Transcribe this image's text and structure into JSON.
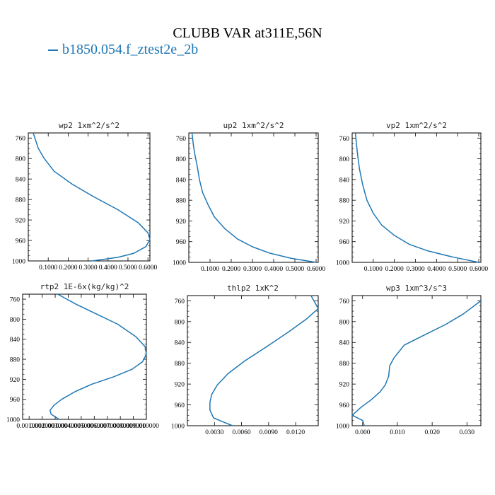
{
  "title": "CLUBB VAR at311E,56N",
  "legend": {
    "label": "b1850.054.f_ztest2e_2b",
    "color": "#1f77b4"
  },
  "chart_data": [
    {
      "type": "line",
      "title": "wp2  1xm^2/s^2",
      "xlim": [
        0,
        0.61
      ],
      "ylim": [
        1000,
        750
      ],
      "xticks": [
        0.1,
        0.2,
        0.3,
        0.4,
        0.5,
        0.6
      ],
      "xtick_labels": [
        "0.1000",
        "0.2000",
        "0.3000",
        "0.4000",
        "0.5000",
        "0.6000"
      ],
      "yticks": [
        760,
        800,
        840,
        880,
        920,
        960,
        1000
      ],
      "series": [
        {
          "color": "#1f77b4",
          "x": [
            0.32,
            0.45,
            0.53,
            0.59,
            0.61,
            0.6,
            0.55,
            0.45,
            0.33,
            0.22,
            0.13,
            0.08,
            0.05,
            0.025
          ],
          "y": [
            1000,
            993,
            985,
            972,
            958,
            945,
            925,
            900,
            875,
            850,
            825,
            800,
            780,
            750
          ]
        }
      ]
    },
    {
      "type": "line",
      "title": "up2  1xm^2/s^2",
      "xlim": [
        0,
        0.61
      ],
      "ylim": [
        1000,
        750
      ],
      "xticks": [
        0.1,
        0.2,
        0.3,
        0.4,
        0.5,
        0.6
      ],
      "xtick_labels": [
        "0.1000",
        "0.2000",
        "0.3000",
        "0.4000",
        "0.5000",
        "0.6000"
      ],
      "yticks": [
        760,
        800,
        840,
        880,
        920,
        960,
        1000
      ],
      "series": [
        {
          "color": "#1f77b4",
          "x": [
            0.6,
            0.48,
            0.38,
            0.3,
            0.23,
            0.17,
            0.12,
            0.09,
            0.065,
            0.05,
            0.04,
            0.03,
            0.022,
            0.015
          ],
          "y": [
            1000,
            992,
            982,
            970,
            955,
            935,
            912,
            888,
            865,
            840,
            815,
            795,
            775,
            750
          ]
        }
      ]
    },
    {
      "type": "line",
      "title": "vp2  1xm^2/s^2",
      "xlim": [
        0,
        0.61
      ],
      "ylim": [
        1000,
        750
      ],
      "xticks": [
        0.1,
        0.2,
        0.3,
        0.4,
        0.5,
        0.6
      ],
      "xtick_labels": [
        "0.1000",
        "0.2000",
        "0.3000",
        "0.4000",
        "0.5000",
        "0.6000"
      ],
      "yticks": [
        760,
        800,
        840,
        880,
        920,
        960,
        1000
      ],
      "series": [
        {
          "color": "#1f77b4",
          "x": [
            0.6,
            0.48,
            0.36,
            0.27,
            0.2,
            0.14,
            0.1,
            0.07,
            0.05,
            0.035,
            0.025,
            0.015
          ],
          "y": [
            1000,
            990,
            978,
            965,
            948,
            928,
            905,
            880,
            850,
            820,
            790,
            750
          ]
        }
      ]
    },
    {
      "type": "line",
      "title": "rtp2  1E-6x(kg/kg)^2",
      "xlim": [
        0.0005,
        0.01
      ],
      "ylim": [
        1000,
        750
      ],
      "xticks": [
        0.001,
        0.002,
        0.003,
        0.004,
        0.005,
        0.006,
        0.007,
        0.008,
        0.009,
        0.01
      ],
      "xtick_labels": [
        "0.001000",
        "0.002000",
        "0.003000",
        "0.004000",
        "0.005000",
        "0.006000",
        "0.007000",
        "0.008000",
        "0.009000",
        "0.010000"
      ],
      "yticks": [
        760,
        800,
        840,
        880,
        920,
        960,
        1000
      ],
      "series": [
        {
          "color": "#1f77b4",
          "x": [
            0.0033,
            0.0027,
            0.0026,
            0.0029,
            0.0035,
            0.0045,
            0.0058,
            0.0075,
            0.0089,
            0.0097,
            0.01,
            0.0099,
            0.0092,
            0.0078,
            0.0062,
            0.0046,
            0.0032
          ],
          "y": [
            1000,
            990,
            982,
            972,
            960,
            945,
            930,
            915,
            900,
            885,
            870,
            855,
            835,
            810,
            790,
            770,
            750
          ]
        }
      ]
    },
    {
      "type": "line",
      "title": "thlp2  1xK^2",
      "xlim": [
        0,
        0.0145
      ],
      "ylim": [
        1000,
        750
      ],
      "xticks": [
        0.003,
        0.006,
        0.009,
        0.012
      ],
      "xtick_labels": [
        "0.0030",
        "0.0060",
        "0.0090",
        "0.0120"
      ],
      "yticks": [
        760,
        800,
        840,
        880,
        920,
        960,
        1000
      ],
      "series": [
        {
          "color": "#1f77b4",
          "x": [
            0.005,
            0.004,
            0.0029,
            0.0025,
            0.0025,
            0.0027,
            0.0033,
            0.0045,
            0.0064,
            0.0088,
            0.0112,
            0.0132,
            0.0145,
            0.0137
          ],
          "y": [
            1000,
            993,
            985,
            970,
            955,
            940,
            922,
            900,
            875,
            848,
            820,
            795,
            775,
            750
          ]
        }
      ]
    },
    {
      "type": "line",
      "title": "wp3  1xm^3/s^3",
      "xlim": [
        -0.003,
        0.034
      ],
      "ylim": [
        1000,
        750
      ],
      "xticks": [
        0.0,
        0.01,
        0.02,
        0.03
      ],
      "xtick_labels": [
        "0.000",
        "0.010",
        "0.020",
        "0.030"
      ],
      "yticks": [
        760,
        800,
        840,
        880,
        920,
        960,
        1000
      ],
      "series": [
        {
          "color": "#1f77b4",
          "x": [
            0.0005,
            0.0,
            -0.003,
            -0.0005,
            0.0025,
            0.005,
            0.0065,
            0.0075,
            0.0078,
            0.009,
            0.012,
            0.018,
            0.024,
            0.029,
            0.034
          ],
          "y": [
            1000,
            990,
            980,
            965,
            950,
            935,
            922,
            905,
            885,
            870,
            845,
            825,
            805,
            785,
            760
          ]
        }
      ]
    }
  ]
}
